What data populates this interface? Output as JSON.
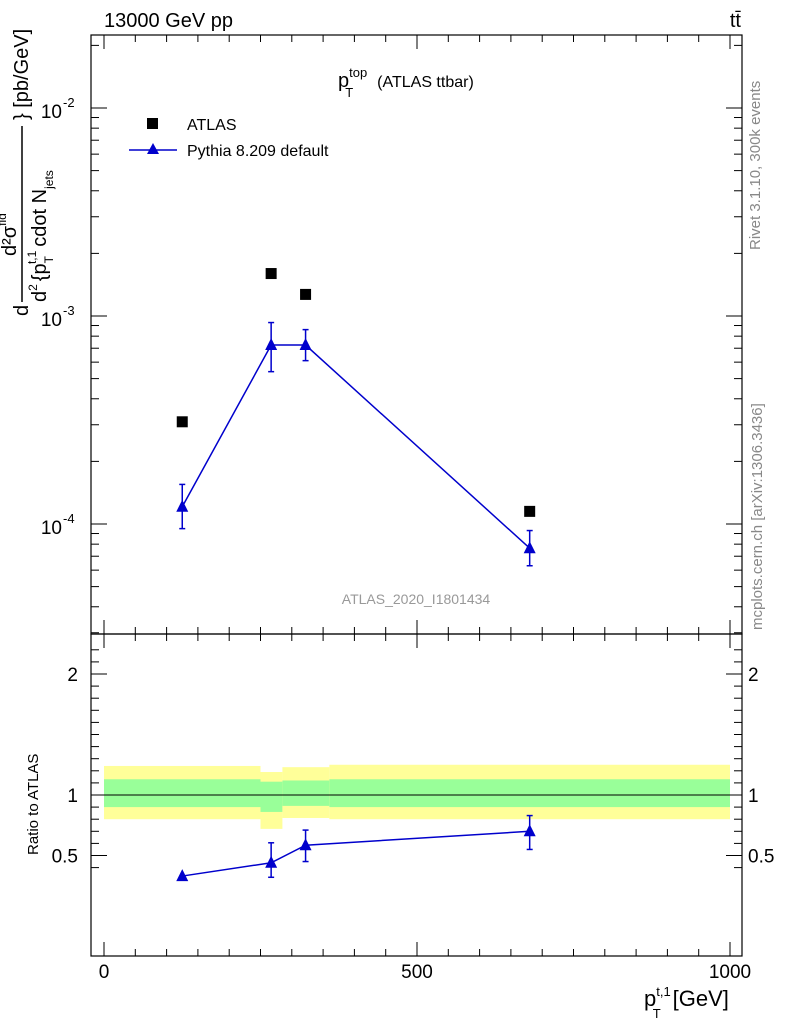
{
  "header": {
    "energy_label": "13000 GeV pp",
    "process_label": "tt̄"
  },
  "side_labels": {
    "rivet": "Rivet 3.1.10,  300k events",
    "source": "mcplots.cern.ch [arXiv:1306.3436]"
  },
  "main_plot": {
    "title_var": "p",
    "title_sup": "top",
    "title_sub": "T",
    "title_rest": "(ATLAS ttbar)",
    "analysis_id": "ATLAS_2020_I1801434",
    "ylabel_text": "d²σᶦᵈ / d² {pT t,1 cdot Njets} [pb/GeV]",
    "ylabel_parts": {
      "d1": "d",
      "num": "d²σ",
      "num_sup": "fid",
      "unit": "} [pb/GeV]",
      "den_a": "d",
      "den_sup1": "2",
      "den_b": "{p",
      "den_sub": "T",
      "den_sup2": "t,1",
      "den_c": "cdot N",
      "den_sub2": "jets"
    },
    "ytick_labels": [
      "10",
      "10",
      "10"
    ],
    "ytick_exps": [
      "-2",
      "-3",
      "-4"
    ]
  },
  "ratio_plot": {
    "ylabel": "Ratio to ATLAS",
    "ytick_labels": [
      "2",
      "1",
      "0.5"
    ]
  },
  "x_axis": {
    "label_var": "p",
    "label_sub": "T",
    "label_sup": "t,1",
    "label_unit": "[GeV]",
    "tick_labels": [
      "0",
      "500",
      "1000"
    ]
  },
  "legend": [
    {
      "label": "ATLAS",
      "marker": "square"
    },
    {
      "label": "Pythia 8.209 default",
      "marker": "triangle"
    }
  ],
  "colors": {
    "data": "#000000",
    "mc": "#0000cc",
    "band_inner": "#99ff99",
    "band_outer": "#ffff99"
  },
  "chart_data": [
    {
      "type": "scatter",
      "xlabel": "pT t,1 [GeV]",
      "ylabel": "d²σfid / d²{pT t,1 cdot Njets} [pb/GeV]",
      "xlim": [
        -20,
        1000
      ],
      "ylim": [
        3e-05,
        0.022
      ],
      "yscale": "log",
      "series": [
        {
          "name": "ATLAS",
          "x": [
            125,
            267,
            322,
            680
          ],
          "y": [
            0.00031,
            0.0016,
            0.00127,
            0.000115
          ]
        },
        {
          "name": "Pythia 8.209 default",
          "x": [
            125,
            267,
            322,
            680
          ],
          "y": [
            0.000121,
            0.000725,
            0.000725,
            7.65e-05
          ],
          "err_up": [
            3.4e-05,
            0.000205,
            0.000135,
            1.65e-05
          ],
          "err_down": [
            2.6e-05,
            0.000185,
            0.000115,
            1.35e-05
          ]
        }
      ]
    },
    {
      "type": "line",
      "ylabel": "Ratio to ATLAS",
      "xlim": [
        -20,
        1000
      ],
      "ylim": [
        0.35,
        2.3
      ],
      "bands": [
        {
          "x": [
            0,
            250,
            285,
            360,
            1000
          ],
          "inner_low": [
            0.9,
            0.86,
            0.91,
            0.9
          ],
          "inner_high": [
            1.13,
            1.11,
            1.12,
            1.13
          ],
          "outer_low": [
            0.8,
            0.72,
            0.81,
            0.8
          ],
          "outer_high": [
            1.24,
            1.19,
            1.23,
            1.25
          ]
        }
      ],
      "series": [
        {
          "name": "Pythia 8.209 default",
          "x": [
            125,
            267,
            322,
            680
          ],
          "y": [
            0.33,
            0.44,
            0.585,
            0.7
          ],
          "err_up": [
            0.0,
            0.165,
            0.125,
            0.13
          ],
          "err_down": [
            0.0,
            0.12,
            0.135,
            0.15
          ]
        }
      ]
    }
  ]
}
